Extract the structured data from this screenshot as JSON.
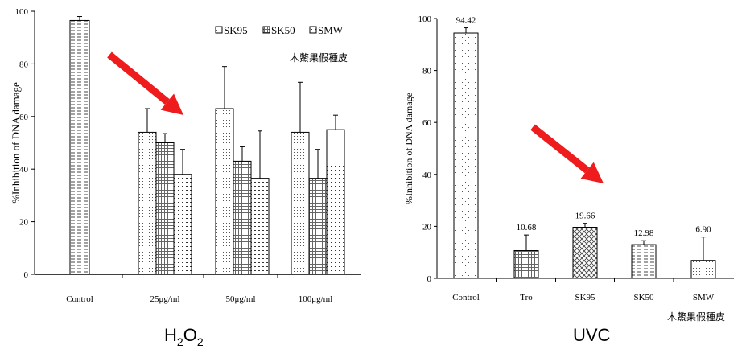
{
  "colors": {
    "arrow": "#ee1c1c",
    "axis": "#000000",
    "bar_edge": "#000000"
  },
  "chart_data": [
    {
      "type": "bar",
      "caption": "H",
      "caption_sub1": "2",
      "caption_mid": "O",
      "caption_sub2": "2",
      "ylabel": "%Inhibition of DNA damage",
      "ylim": [
        0,
        100
      ],
      "yticks": [
        "0",
        "20",
        "40",
        "60",
        "80",
        "100"
      ],
      "categories": [
        "Control",
        "25μg/ml",
        "50μg/ml",
        "100μg/ml"
      ],
      "legend": {
        "placement": "top-right",
        "entries": [
          "SK95",
          "SK50",
          "SMW"
        ],
        "note": "木鱉果假種皮"
      },
      "series": [
        {
          "name": "Control",
          "pattern": "h-dash",
          "values": [
            96.5,
            null,
            null,
            null
          ],
          "errors": [
            1.5,
            null,
            null,
            null
          ]
        },
        {
          "name": "SK95",
          "pattern": "dots-fine",
          "values": [
            null,
            54,
            63,
            54
          ],
          "errors": [
            null,
            9,
            16,
            19
          ]
        },
        {
          "name": "SK50",
          "pattern": "grid",
          "values": [
            null,
            50,
            43,
            36.5
          ],
          "errors": [
            null,
            3.5,
            5.5,
            11
          ]
        },
        {
          "name": "SMW",
          "pattern": "dots-coarse",
          "values": [
            null,
            38,
            36.5,
            55
          ],
          "errors": [
            null,
            9.5,
            18,
            5.5
          ]
        }
      ],
      "indicator_arrow": "down-right"
    },
    {
      "type": "bar",
      "caption": "UVC",
      "ylabel": "%Inhibition of DNA damage",
      "ylim": [
        0,
        100
      ],
      "yticks": [
        "0",
        "20",
        "40",
        "60",
        "80",
        "100"
      ],
      "categories": [
        "Control",
        "Tro",
        "SK95",
        "SK50",
        "SMW"
      ],
      "note": "木鱉果假種皮",
      "values": [
        94.42,
        10.68,
        19.66,
        12.98,
        6.9
      ],
      "labels": [
        "94.42",
        "10.68",
        "19.66",
        "12.98",
        "6.90"
      ],
      "errors": [
        2,
        6,
        1.5,
        1.5,
        9
      ],
      "patterns": [
        "dots-sparse",
        "grid",
        "crosshatch",
        "h-dash",
        "dots-fine"
      ],
      "indicator_arrow": "down-right"
    }
  ]
}
